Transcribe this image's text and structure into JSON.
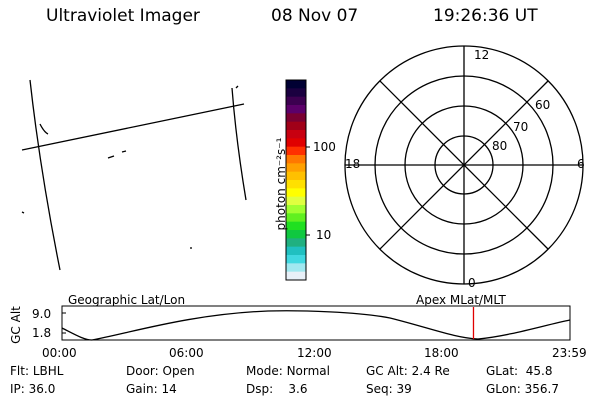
{
  "header": {
    "instrument": "Ultraviolet Imager",
    "date": "08 Nov 07",
    "time": "19:26:36 UT"
  },
  "colorbar": {
    "label": "photon cm⁻²s⁻¹",
    "ticks": [
      "100",
      "10"
    ],
    "colors": [
      "#000033",
      "#1a0040",
      "#3c0050",
      "#5c006a",
      "#7a0032",
      "#a00018",
      "#c80010",
      "#e00000",
      "#ff3000",
      "#ff7800",
      "#ffa000",
      "#ffc000",
      "#ffe000",
      "#ffff00",
      "#e0ff40",
      "#a0ff30",
      "#60f020",
      "#20e020",
      "#10c840",
      "#20b080",
      "#20c0c0",
      "#40d8e0",
      "#a0e8f0",
      "#e8f0f8"
    ]
  },
  "polar": {
    "lat_labels": [
      "80",
      "70",
      "60"
    ],
    "mlt_labels": [
      "12",
      "18",
      "6",
      "0"
    ]
  },
  "track": {
    "left_label": "Geographic Lat/Lon",
    "right_label": "Apex MLat/MLT",
    "ylabel": "GC Alt",
    "ymax": "9.0",
    "ymin": "1.8",
    "times": [
      "00:00",
      "06:00",
      "12:00",
      "18:00",
      "23:59"
    ],
    "current_time_hours": 19.44
  },
  "status": {
    "filter_label": "Flt:",
    "filter": "LBHL",
    "ip_label": "IP:",
    "ip": "36.0",
    "door_label": "Door:",
    "door": "Open",
    "gain_label": "Gain:",
    "gain": "14",
    "mode_label": "Mode:",
    "mode": "Normal",
    "dsp_label": "Dsp:",
    "dsp": "3.6",
    "gcalt_label": "GC Alt:",
    "gcalt": "2.4 Re",
    "seq_label": "Seq:",
    "seq": "39",
    "glat_label": "GLat:",
    "glat": "45.8",
    "glon_label": "GLon:",
    "glon": "356.7"
  }
}
